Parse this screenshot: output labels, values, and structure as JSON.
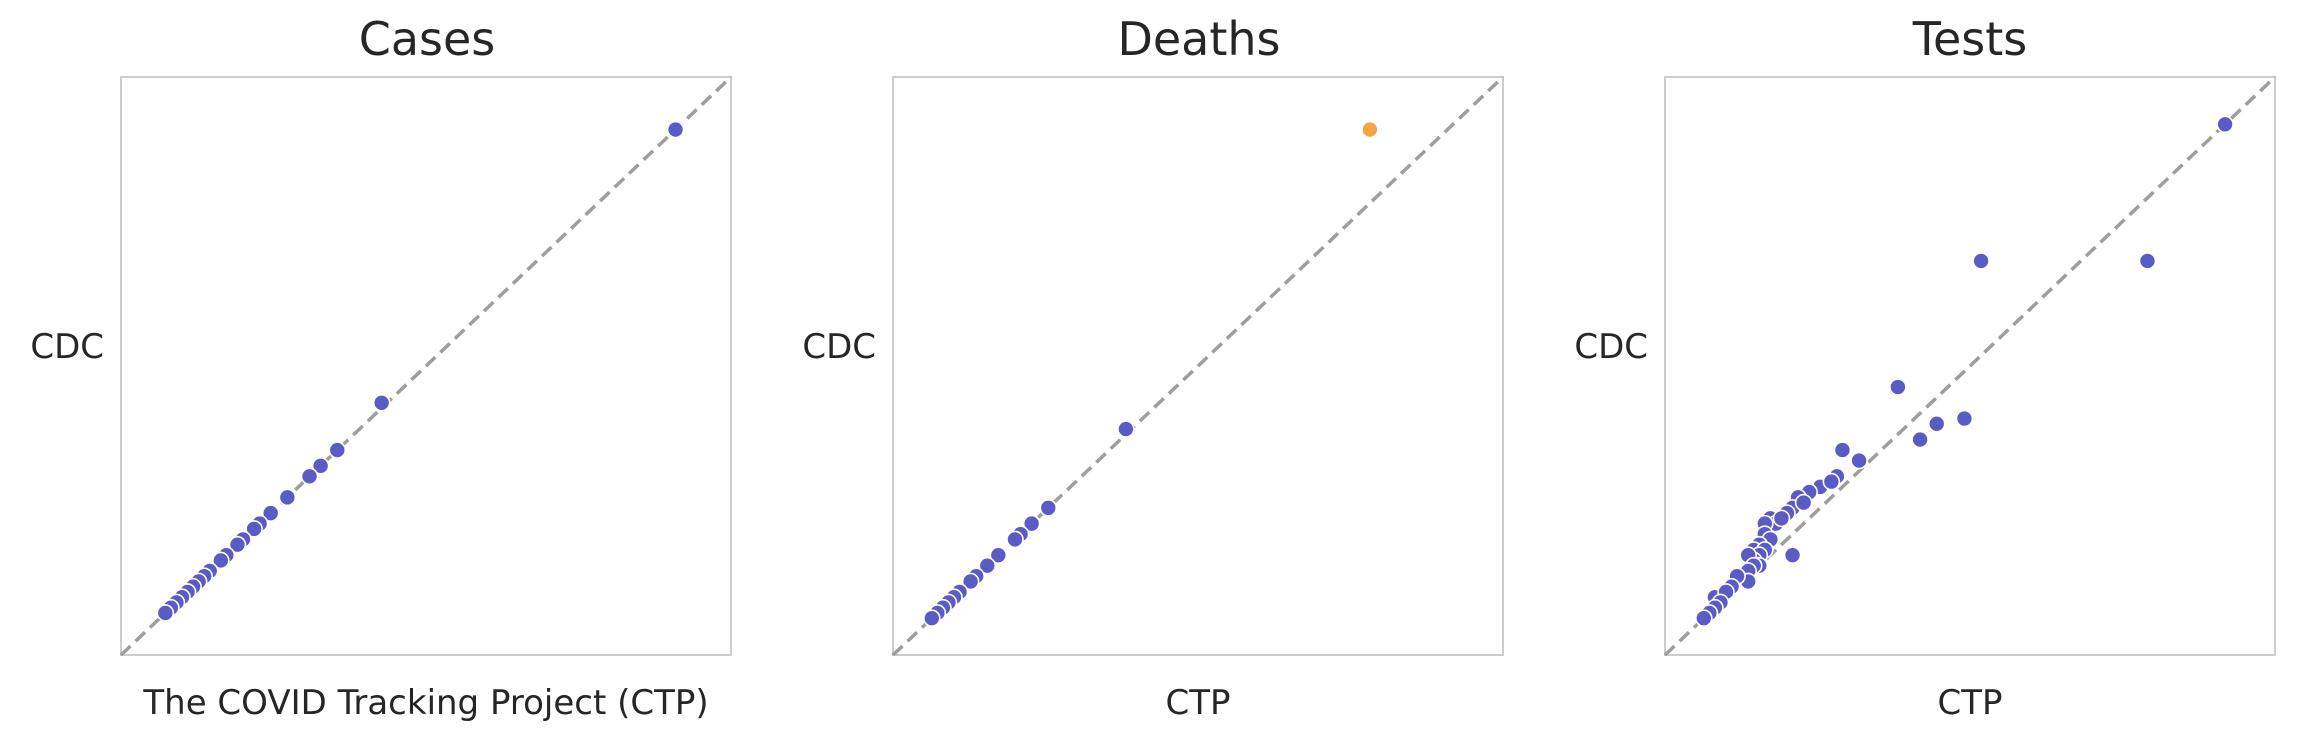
{
  "chart_data": [
    {
      "type": "scatter",
      "title": "Cases",
      "xlabel": "The COVID Tracking Project (CTP)",
      "ylabel": "CDC",
      "xlim": [
        -0.05,
        1.05
      ],
      "ylim": [
        -0.05,
        1.05
      ],
      "grid": false,
      "reference_line": "y = x",
      "series": [
        {
          "color": "#5a5bc5",
          "points": [
            [
              0.95,
              0.95
            ],
            [
              0.42,
              0.43
            ],
            [
              0.34,
              0.34
            ],
            [
              0.31,
              0.31
            ],
            [
              0.29,
              0.29
            ],
            [
              0.25,
              0.25
            ],
            [
              0.22,
              0.22
            ],
            [
              0.2,
              0.2
            ],
            [
              0.19,
              0.19
            ],
            [
              0.17,
              0.17
            ],
            [
              0.16,
              0.16
            ],
            [
              0.14,
              0.14
            ],
            [
              0.13,
              0.13
            ],
            [
              0.11,
              0.11
            ],
            [
              0.1,
              0.1
            ],
            [
              0.09,
              0.09
            ],
            [
              0.08,
              0.08
            ],
            [
              0.07,
              0.07
            ],
            [
              0.06,
              0.06
            ],
            [
              0.05,
              0.05
            ],
            [
              0.04,
              0.04
            ],
            [
              0.03,
              0.03
            ]
          ]
        }
      ]
    },
    {
      "type": "scatter",
      "title": "Deaths",
      "xlabel": "CTP",
      "ylabel": "CDC",
      "xlim": [
        -0.05,
        1.05
      ],
      "ylim": [
        -0.05,
        1.05
      ],
      "grid": false,
      "reference_line": "y = x",
      "series": [
        {
          "color": "#5a5bc5",
          "points": [
            [
              0.37,
              0.38
            ],
            [
              0.23,
              0.23
            ],
            [
              0.2,
              0.2
            ],
            [
              0.18,
              0.18
            ],
            [
              0.17,
              0.17
            ],
            [
              0.14,
              0.14
            ],
            [
              0.12,
              0.12
            ],
            [
              0.1,
              0.1
            ],
            [
              0.09,
              0.09
            ],
            [
              0.07,
              0.07
            ],
            [
              0.06,
              0.06
            ],
            [
              0.05,
              0.05
            ],
            [
              0.04,
              0.04
            ],
            [
              0.03,
              0.03
            ],
            [
              0.02,
              0.02
            ]
          ]
        },
        {
          "color": "#f5a442",
          "points": [
            [
              0.81,
              0.95
            ]
          ]
        }
      ]
    },
    {
      "type": "scatter",
      "title": "Tests",
      "xlabel": "CTP",
      "ylabel": "CDC",
      "xlim": [
        -0.05,
        1.05
      ],
      "ylim": [
        -0.05,
        1.05
      ],
      "grid": false,
      "reference_line": "y = x",
      "series": [
        {
          "color": "#5a5bc5",
          "points": [
            [
              0.96,
              0.96
            ],
            [
              0.82,
              0.7
            ],
            [
              0.52,
              0.7
            ],
            [
              0.37,
              0.46
            ],
            [
              0.49,
              0.4
            ],
            [
              0.44,
              0.39
            ],
            [
              0.41,
              0.36
            ],
            [
              0.27,
              0.34
            ],
            [
              0.3,
              0.32
            ],
            [
              0.26,
              0.29
            ],
            [
              0.23,
              0.27
            ],
            [
              0.21,
              0.26
            ],
            [
              0.19,
              0.25
            ],
            [
              0.25,
              0.28
            ],
            [
              0.18,
              0.23
            ],
            [
              0.2,
              0.24
            ],
            [
              0.17,
              0.22
            ],
            [
              0.14,
              0.21
            ],
            [
              0.15,
              0.2
            ],
            [
              0.16,
              0.21
            ],
            [
              0.13,
              0.2
            ],
            [
              0.13,
              0.18
            ],
            [
              0.14,
              0.17
            ],
            [
              0.12,
              0.16
            ],
            [
              0.11,
              0.15
            ],
            [
              0.13,
              0.15
            ],
            [
              0.12,
              0.14
            ],
            [
              0.11,
              0.13
            ],
            [
              0.12,
              0.12
            ],
            [
              0.1,
              0.14
            ],
            [
              0.11,
              0.12
            ],
            [
              0.1,
              0.11
            ],
            [
              0.1,
              0.09
            ],
            [
              0.08,
              0.1
            ],
            [
              0.07,
              0.08
            ],
            [
              0.04,
              0.06
            ],
            [
              0.06,
              0.07
            ],
            [
              0.05,
              0.05
            ],
            [
              0.04,
              0.04
            ],
            [
              0.03,
              0.03
            ],
            [
              0.02,
              0.02
            ],
            [
              0.18,
              0.14
            ]
          ]
        }
      ]
    }
  ]
}
